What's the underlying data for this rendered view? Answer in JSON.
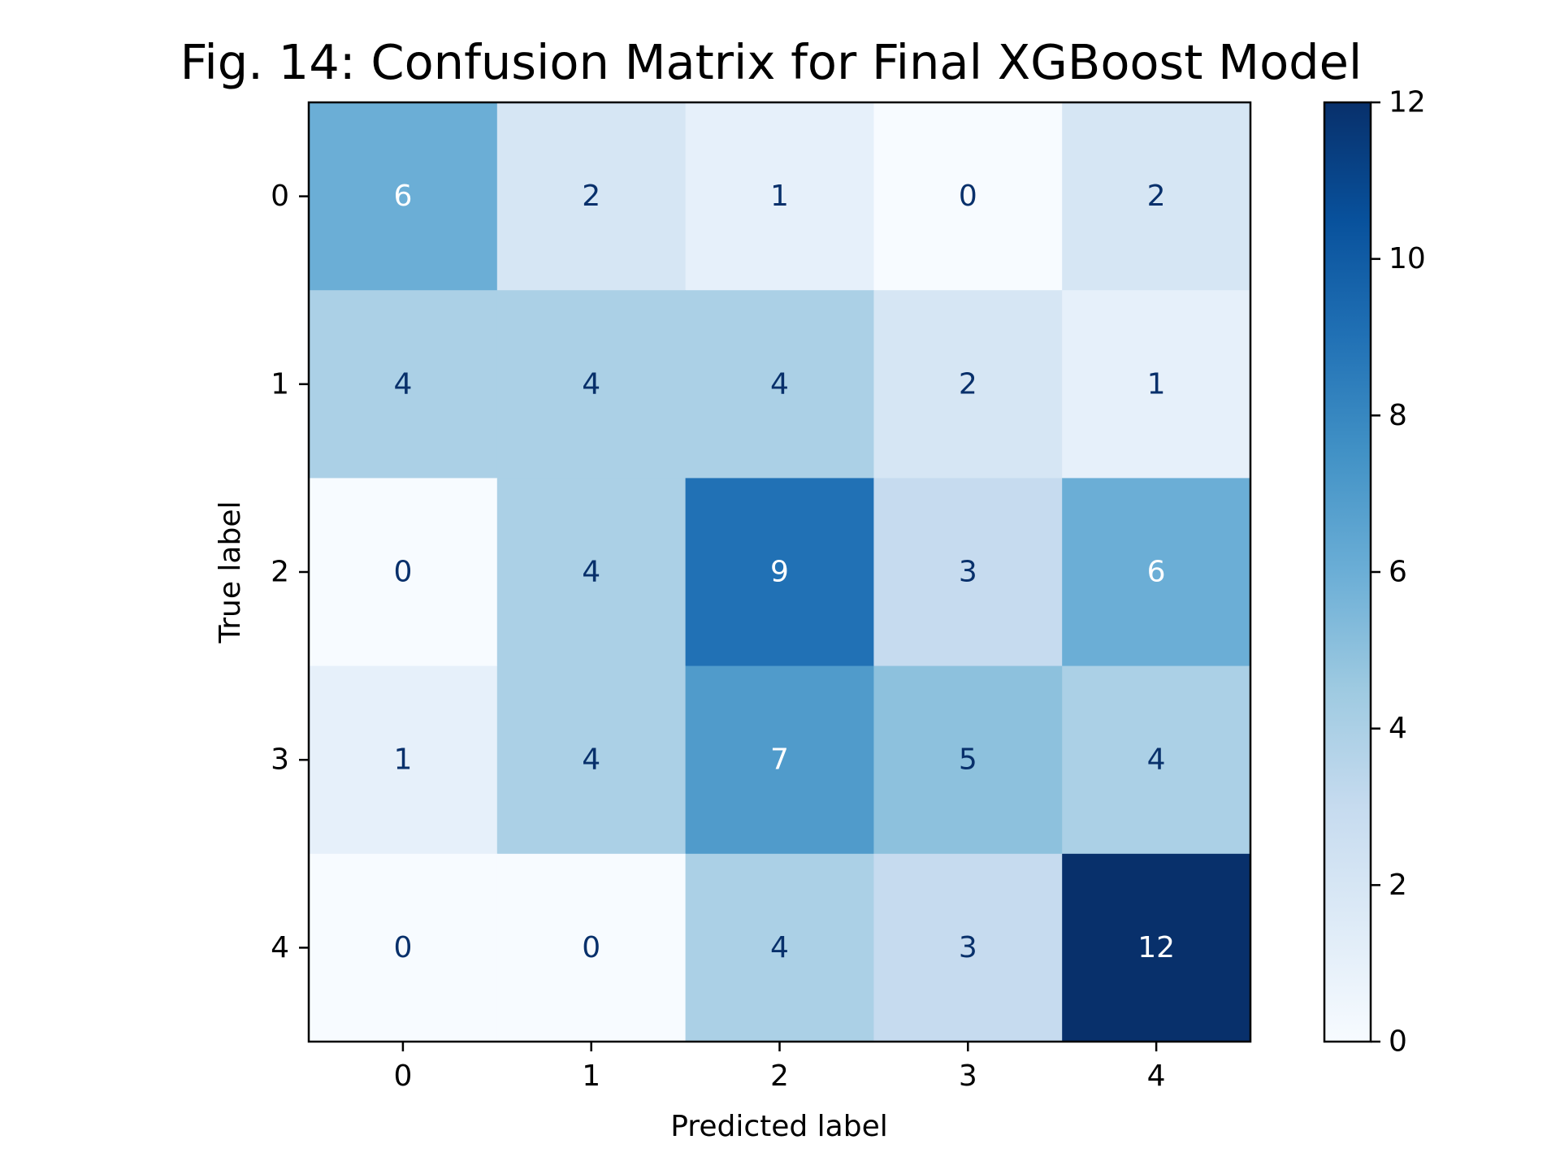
{
  "chart_data": {
    "type": "heatmap",
    "title": "Fig. 14: Confusion Matrix for Final XGBoost Model",
    "xlabel": "Predicted label",
    "ylabel": "True label",
    "x_categories": [
      "0",
      "1",
      "2",
      "3",
      "4"
    ],
    "y_categories": [
      "0",
      "1",
      "2",
      "3",
      "4"
    ],
    "values": [
      [
        6,
        2,
        1,
        0,
        2
      ],
      [
        4,
        4,
        4,
        2,
        1
      ],
      [
        0,
        4,
        9,
        3,
        6
      ],
      [
        1,
        4,
        7,
        5,
        4
      ],
      [
        0,
        0,
        4,
        3,
        12
      ]
    ],
    "colormap": "Blues",
    "value_range": [
      0,
      12
    ],
    "colorbar_ticks": [
      "0",
      "2",
      "4",
      "6",
      "8",
      "10",
      "12"
    ],
    "grid": false,
    "text_colors": {
      "dark": "#08306b",
      "light": "#ffffff"
    }
  }
}
